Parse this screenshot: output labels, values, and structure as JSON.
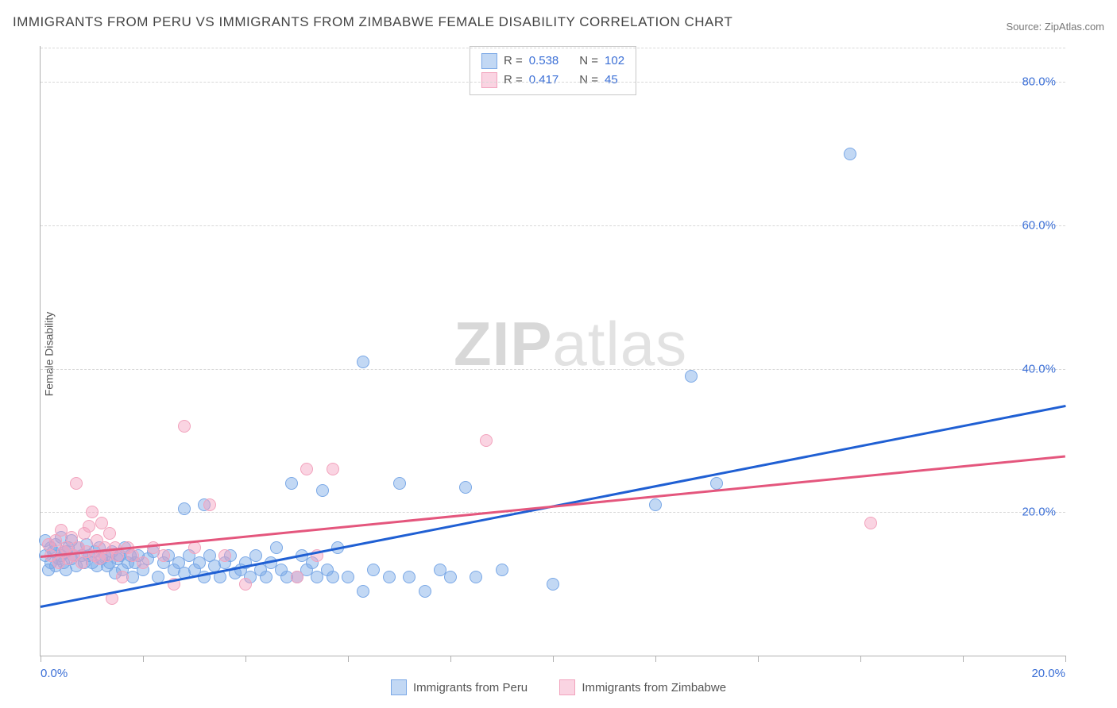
{
  "title": "IMMIGRANTS FROM PERU VS IMMIGRANTS FROM ZIMBABWE FEMALE DISABILITY CORRELATION CHART",
  "source": "Source: ZipAtlas.com",
  "y_axis_label": "Female Disability",
  "watermark_bold": "ZIP",
  "watermark_light": "atlas",
  "chart": {
    "type": "scatter",
    "xlim": [
      0,
      20
    ],
    "ylim": [
      0,
      85
    ],
    "x_ticks": [
      0,
      2,
      4,
      6,
      8,
      10,
      12,
      14,
      16,
      18,
      20
    ],
    "x_tick_labels": {
      "0": "0.0%",
      "20": "20.0%"
    },
    "y_ticks": [
      20,
      40,
      60,
      80
    ],
    "y_tick_labels": [
      "20.0%",
      "40.0%",
      "60.0%",
      "80.0%"
    ],
    "grid_color": "#d8d8d8",
    "axis_color": "#b0b0b0",
    "background_color": "#ffffff",
    "tick_label_color": "#3b6fd6",
    "marker_radius": 7,
    "marker_border_width": 1.5,
    "trend_line_width": 3
  },
  "series": [
    {
      "name": "Immigrants from Peru",
      "fill_color": "rgba(120,168,230,0.45)",
      "stroke_color": "#7aa8e6",
      "trend_color": "#1f5fd3",
      "stats": {
        "R_label": "R =",
        "R": "0.538",
        "N_label": "N =",
        "N": "102"
      },
      "trend": {
        "x1": 0,
        "y1": 7.0,
        "x2": 20,
        "y2": 35.0
      },
      "points": [
        [
          0.1,
          14
        ],
        [
          0.1,
          16
        ],
        [
          0.15,
          12
        ],
        [
          0.2,
          15
        ],
        [
          0.2,
          13
        ],
        [
          0.25,
          14.5
        ],
        [
          0.3,
          12.5
        ],
        [
          0.3,
          15.5
        ],
        [
          0.35,
          13.5
        ],
        [
          0.4,
          14
        ],
        [
          0.4,
          16.5
        ],
        [
          0.45,
          13
        ],
        [
          0.5,
          14.5
        ],
        [
          0.5,
          12
        ],
        [
          0.55,
          15
        ],
        [
          0.6,
          13.5
        ],
        [
          0.6,
          16
        ],
        [
          0.65,
          14
        ],
        [
          0.7,
          12.5
        ],
        [
          0.75,
          15
        ],
        [
          0.8,
          14
        ],
        [
          0.85,
          13
        ],
        [
          0.9,
          15.5
        ],
        [
          0.95,
          14
        ],
        [
          1.0,
          13
        ],
        [
          1.05,
          14.5
        ],
        [
          1.1,
          12.5
        ],
        [
          1.15,
          15
        ],
        [
          1.2,
          13.5
        ],
        [
          1.25,
          14
        ],
        [
          1.3,
          12.5
        ],
        [
          1.35,
          13
        ],
        [
          1.4,
          14.5
        ],
        [
          1.45,
          11.5
        ],
        [
          1.5,
          13.5
        ],
        [
          1.55,
          14
        ],
        [
          1.6,
          12
        ],
        [
          1.65,
          15
        ],
        [
          1.7,
          13
        ],
        [
          1.75,
          14
        ],
        [
          1.8,
          11
        ],
        [
          1.85,
          13
        ],
        [
          1.9,
          14
        ],
        [
          2.0,
          12
        ],
        [
          2.1,
          13.5
        ],
        [
          2.2,
          14.5
        ],
        [
          2.3,
          11
        ],
        [
          2.4,
          13
        ],
        [
          2.5,
          14
        ],
        [
          2.6,
          12
        ],
        [
          2.7,
          13
        ],
        [
          2.8,
          11.5
        ],
        [
          2.9,
          14
        ],
        [
          3.0,
          12
        ],
        [
          3.1,
          13
        ],
        [
          3.2,
          11
        ],
        [
          3.3,
          14
        ],
        [
          3.4,
          12.5
        ],
        [
          3.5,
          11
        ],
        [
          3.6,
          13
        ],
        [
          3.7,
          14
        ],
        [
          3.8,
          11.5
        ],
        [
          3.9,
          12
        ],
        [
          4.0,
          13
        ],
        [
          4.1,
          11
        ],
        [
          4.2,
          14
        ],
        [
          4.3,
          12
        ],
        [
          4.4,
          11
        ],
        [
          4.5,
          13
        ],
        [
          4.6,
          15
        ],
        [
          4.7,
          12
        ],
        [
          4.8,
          11
        ],
        [
          4.9,
          24
        ],
        [
          5.0,
          11
        ],
        [
          5.1,
          14
        ],
        [
          5.2,
          12
        ],
        [
          5.3,
          13
        ],
        [
          5.4,
          11
        ],
        [
          5.5,
          23
        ],
        [
          5.6,
          12
        ],
        [
          5.7,
          11
        ],
        [
          5.8,
          15
        ],
        [
          6.0,
          11
        ],
        [
          6.3,
          9
        ],
        [
          6.3,
          41
        ],
        [
          6.5,
          12
        ],
        [
          6.8,
          11
        ],
        [
          7.0,
          24
        ],
        [
          7.2,
          11
        ],
        [
          7.5,
          9
        ],
        [
          7.8,
          12
        ],
        [
          8.0,
          11
        ],
        [
          8.3,
          23.5
        ],
        [
          8.5,
          11
        ],
        [
          9.0,
          12
        ],
        [
          10.0,
          10
        ],
        [
          12.0,
          21
        ],
        [
          12.7,
          39
        ],
        [
          13.2,
          24
        ],
        [
          15.8,
          70
        ],
        [
          3.2,
          21
        ],
        [
          2.8,
          20.5
        ]
      ]
    },
    {
      "name": "Immigrants from Zimbabwe",
      "fill_color": "rgba(245,160,190,0.45)",
      "stroke_color": "#f2a3bd",
      "trend_color": "#e4567d",
      "stats": {
        "R_label": "R =",
        "R": "0.417",
        "N_label": "N =",
        "N": "45"
      },
      "trend": {
        "x1": 0,
        "y1": 14.0,
        "x2": 20,
        "y2": 28.0
      },
      "points": [
        [
          0.15,
          15.5
        ],
        [
          0.2,
          14
        ],
        [
          0.3,
          16
        ],
        [
          0.35,
          13
        ],
        [
          0.4,
          17.5
        ],
        [
          0.45,
          14.5
        ],
        [
          0.5,
          15
        ],
        [
          0.55,
          13.5
        ],
        [
          0.6,
          16.5
        ],
        [
          0.65,
          14
        ],
        [
          0.7,
          24
        ],
        [
          0.75,
          15
        ],
        [
          0.8,
          13
        ],
        [
          0.85,
          17
        ],
        [
          0.9,
          14.5
        ],
        [
          0.95,
          18
        ],
        [
          1.0,
          20
        ],
        [
          1.05,
          14
        ],
        [
          1.1,
          16
        ],
        [
          1.15,
          13.5
        ],
        [
          1.2,
          18.5
        ],
        [
          1.25,
          15
        ],
        [
          1.3,
          14
        ],
        [
          1.35,
          17
        ],
        [
          1.4,
          8
        ],
        [
          1.45,
          15
        ],
        [
          1.5,
          14
        ],
        [
          1.6,
          11
        ],
        [
          1.7,
          15
        ],
        [
          1.8,
          14
        ],
        [
          2.0,
          13
        ],
        [
          2.2,
          15
        ],
        [
          2.4,
          14
        ],
        [
          2.6,
          10
        ],
        [
          2.8,
          32
        ],
        [
          3.0,
          15
        ],
        [
          3.3,
          21
        ],
        [
          3.6,
          14
        ],
        [
          4.0,
          10
        ],
        [
          5.0,
          11
        ],
        [
          5.2,
          26
        ],
        [
          5.4,
          14
        ],
        [
          5.7,
          26
        ],
        [
          8.7,
          30
        ],
        [
          16.2,
          18.5
        ]
      ]
    }
  ],
  "legend_bottom": [
    {
      "label": "Immigrants from Peru",
      "fill": "rgba(120,168,230,0.45)",
      "stroke": "#7aa8e6"
    },
    {
      "label": "Immigrants from Zimbabwe",
      "fill": "rgba(245,160,190,0.45)",
      "stroke": "#f2a3bd"
    }
  ]
}
